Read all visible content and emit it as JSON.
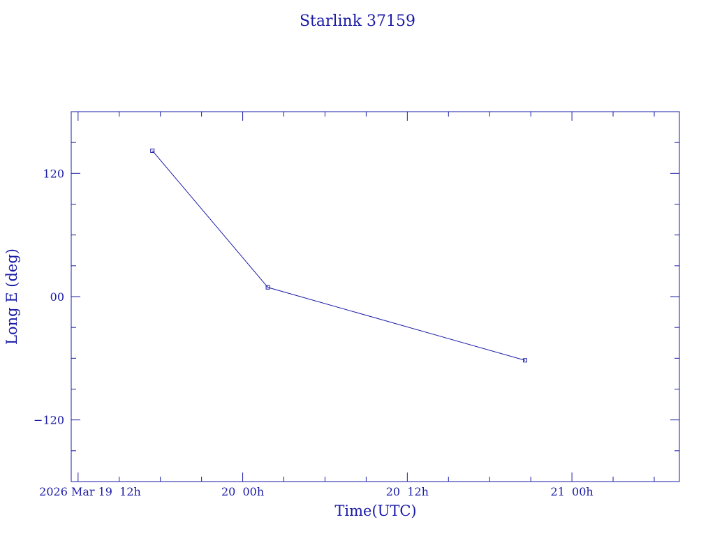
{
  "chart_data": {
    "type": "line",
    "title": "Starlink 37159",
    "xlabel": "Time(UTC)",
    "ylabel": "Long E (deg)",
    "x_unit": "hours UTC",
    "x_ticks": [
      {
        "value": "2026-03-19T12:00Z",
        "label": "2026 Mar 19  12h"
      },
      {
        "value": "2026-03-20T00:00Z",
        "label": "20  00h"
      },
      {
        "value": "2026-03-20T12:00Z",
        "label": "20  12h"
      },
      {
        "value": "2026-03-21T00:00Z",
        "label": "21  00h"
      }
    ],
    "y_ticks": [
      {
        "value": 120,
        "label": "120"
      },
      {
        "value": 0,
        "label": "00"
      },
      {
        "value": -120,
        "label": "−120"
      }
    ],
    "xlim": [
      "2026-03-19T11:30Z",
      "2026-03-21T07:50Z"
    ],
    "ylim": [
      -180,
      180
    ],
    "grid": false,
    "series": [
      {
        "points": [
          {
            "x": "2026-03-19T17:25Z",
            "y": 142
          },
          {
            "x": "2026-03-20T01:50Z",
            "y": 9
          },
          {
            "x": "2026-03-20T20:35Z",
            "y": -62
          }
        ]
      }
    ],
    "colors": {
      "axes": "#1a1aa6",
      "line": "#1a1aa6",
      "text": "#1a1aa6"
    }
  }
}
